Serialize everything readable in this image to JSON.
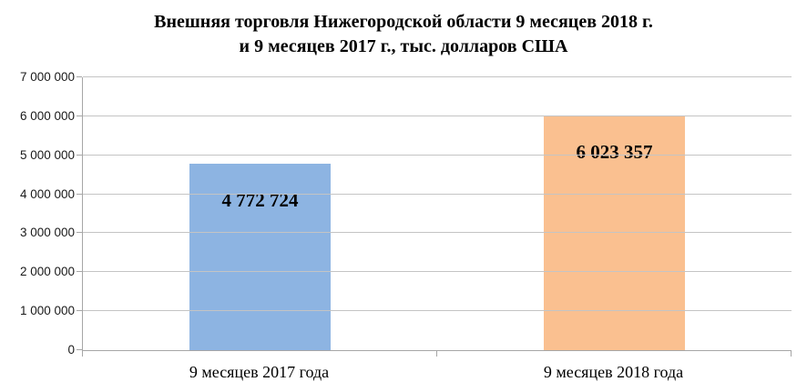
{
  "chart_data": {
    "type": "bar",
    "title": "Внешняя торговля Нижегородской области 9 месяцев 2018 г. и 9 месяцев 2017 г., тыс. долларов США",
    "title_lines": [
      "Внешняя торговля Нижегородской области 9 месяцев 2018 г.",
      "и 9 месяцев 2017 г., тыс. долларов США"
    ],
    "categories": [
      "9 месяцев 2017 года",
      "9 месяцев 2018 года"
    ],
    "values": [
      4772724,
      6023357
    ],
    "value_labels": [
      "4 772 724",
      "6 023 357"
    ],
    "bar_colors": [
      "#8DB4E2",
      "#FAC090"
    ],
    "ylim": [
      0,
      7000000
    ],
    "ytick_step": 1000000,
    "ytick_labels": [
      "0",
      "1 000 000",
      "2 000 000",
      "3 000 000",
      "4 000 000",
      "5 000 000",
      "6 000 000",
      "7 000 000"
    ],
    "xlabel": "",
    "ylabel": "",
    "grid": true,
    "legend_position": "none",
    "colors": {
      "gridline": "#C4C4C4",
      "axis": "#A6A6A6",
      "title_text": "#000000",
      "label_text": "#000000",
      "background": "#FFFFFF"
    }
  }
}
